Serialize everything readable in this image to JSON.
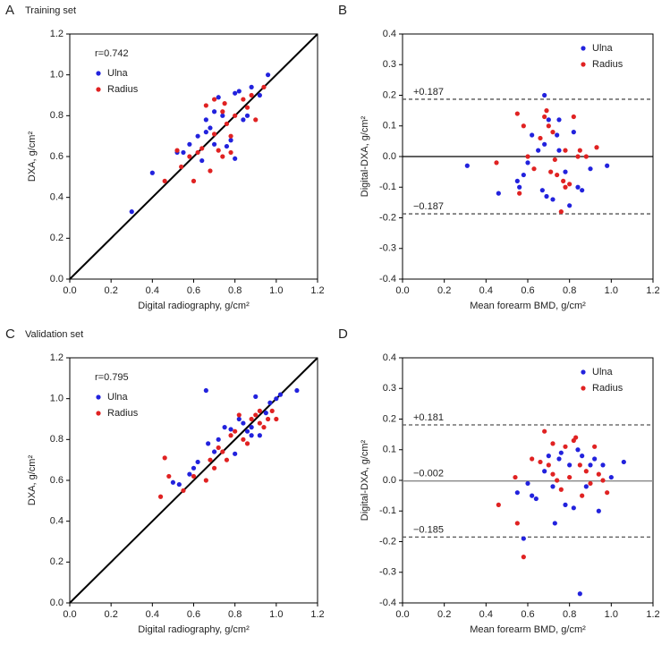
{
  "chart_data": [
    {
      "type": "scatter",
      "panel": "A",
      "title": "Training set",
      "annotation": "r=0.742",
      "xlabel": "Digital radiography, g/cm²",
      "ylabel": "DXA, g/cm²",
      "identity_line": true,
      "legend": "upper left",
      "xlim": [
        0,
        1.2
      ],
      "ylim": [
        0,
        1.2
      ],
      "xticks": [
        {
          "value": 0,
          "label": "0.0"
        },
        0.2,
        0.4,
        0.6,
        0.8,
        {
          "value": 1,
          "label": "1.0"
        },
        1.2
      ],
      "yticks": [
        {
          "value": 0,
          "label": "0.0"
        },
        0.2,
        0.4,
        0.6,
        0.8,
        {
          "value": 1,
          "label": "1.0"
        },
        1.2
      ],
      "series": [
        {
          "name": "Ulna",
          "color": "#2222dd",
          "x": [
            0.3,
            0.4,
            0.52,
            0.55,
            0.58,
            0.62,
            0.64,
            0.66,
            0.68,
            0.7,
            0.72,
            0.74,
            0.76,
            0.78,
            0.8,
            0.8,
            0.82,
            0.84,
            0.86,
            0.88,
            0.92,
            0.96,
            0.7,
            0.66
          ],
          "values": [
            0.33,
            0.52,
            0.62,
            0.62,
            0.66,
            0.7,
            0.58,
            0.78,
            0.74,
            0.82,
            0.89,
            0.8,
            0.65,
            0.68,
            0.59,
            0.91,
            0.92,
            0.78,
            0.8,
            0.94,
            0.9,
            1.0,
            0.66,
            0.72
          ]
        },
        {
          "name": "Radius",
          "color": "#e02222",
          "x": [
            0.46,
            0.52,
            0.54,
            0.58,
            0.6,
            0.64,
            0.66,
            0.68,
            0.7,
            0.72,
            0.74,
            0.75,
            0.76,
            0.78,
            0.78,
            0.8,
            0.84,
            0.86,
            0.88,
            0.9,
            0.94,
            0.74,
            0.62,
            0.7
          ],
          "values": [
            0.48,
            0.63,
            0.55,
            0.6,
            0.48,
            0.64,
            0.85,
            0.53,
            0.71,
            0.63,
            0.6,
            0.86,
            0.76,
            0.7,
            0.62,
            0.8,
            0.88,
            0.84,
            0.9,
            0.78,
            0.94,
            0.82,
            0.62,
            0.88
          ]
        }
      ]
    },
    {
      "type": "scatter",
      "panel": "B",
      "xlabel": "Mean forearm BMD, g/cm²",
      "ylabel": "Digital-DXA, g/cm²",
      "legend": "upper right",
      "xlim": [
        0,
        1.2
      ],
      "ylim": [
        -0.4,
        0.4
      ],
      "xticks": [
        {
          "value": 0,
          "label": "0.0"
        },
        0.2,
        0.4,
        0.6,
        0.8,
        {
          "value": 1,
          "label": "1.0"
        },
        1.2
      ],
      "yticks": [
        {
          "value": -0.4,
          "label": "-0.4"
        },
        {
          "value": -0.3,
          "label": "-0.3"
        },
        {
          "value": -0.2,
          "label": "-0.2"
        },
        {
          "value": -0.1,
          "label": "-0.1"
        },
        {
          "value": 0,
          "label": "0.0"
        },
        0.1,
        0.2,
        0.3,
        0.4
      ],
      "hlines": [
        {
          "value": 0.187,
          "label": "+0.187",
          "dashed": true,
          "color": "#555555"
        },
        {
          "value": 0,
          "dashed": false,
          "color": "#000000"
        },
        {
          "value": -0.187,
          "label": "−0.187",
          "dashed": true,
          "color": "#555555"
        }
      ],
      "series": [
        {
          "name": "Ulna",
          "color": "#2222dd",
          "x": [
            0.31,
            0.46,
            0.55,
            0.56,
            0.58,
            0.6,
            0.62,
            0.65,
            0.67,
            0.68,
            0.69,
            0.7,
            0.72,
            0.74,
            0.75,
            0.78,
            0.8,
            0.82,
            0.84,
            0.86,
            0.9,
            0.98,
            0.68,
            0.75
          ],
          "values": [
            -0.03,
            -0.12,
            -0.08,
            -0.1,
            -0.06,
            -0.02,
            0.07,
            0.02,
            -0.11,
            0.2,
            -0.13,
            0.12,
            -0.14,
            0.07,
            0.02,
            -0.05,
            -0.16,
            0.08,
            -0.1,
            -0.11,
            -0.04,
            -0.03,
            0.04,
            0.12
          ]
        },
        {
          "name": "Radius",
          "color": "#e02222",
          "x": [
            0.45,
            0.55,
            0.56,
            0.58,
            0.6,
            0.63,
            0.66,
            0.68,
            0.69,
            0.7,
            0.71,
            0.72,
            0.73,
            0.74,
            0.76,
            0.77,
            0.78,
            0.8,
            0.82,
            0.84,
            0.85,
            0.88,
            0.93,
            0.78
          ],
          "values": [
            -0.02,
            0.14,
            -0.12,
            0.1,
            0.0,
            -0.04,
            0.06,
            0.13,
            0.15,
            0.1,
            -0.05,
            0.08,
            -0.01,
            -0.06,
            -0.18,
            -0.08,
            0.02,
            -0.09,
            0.13,
            0.0,
            0.02,
            0.0,
            0.03,
            -0.1
          ]
        }
      ]
    },
    {
      "type": "scatter",
      "panel": "C",
      "title": "Validation set",
      "annotation": "r=0.795",
      "xlabel": "Digital radiography, g/cm²",
      "ylabel": "DXA, g/cm²",
      "identity_line": true,
      "legend": "upper left",
      "xlim": [
        0,
        1.2
      ],
      "ylim": [
        0,
        1.2
      ],
      "xticks": [
        {
          "value": 0,
          "label": "0.0"
        },
        0.2,
        0.4,
        0.6,
        0.8,
        {
          "value": 1,
          "label": "1.0"
        },
        1.2
      ],
      "yticks": [
        {
          "value": 0,
          "label": "0.0"
        },
        0.2,
        0.4,
        0.6,
        0.8,
        {
          "value": 1,
          "label": "1.0"
        },
        1.2
      ],
      "series": [
        {
          "name": "Ulna",
          "color": "#2222dd",
          "x": [
            0.5,
            0.53,
            0.58,
            0.6,
            0.62,
            0.66,
            0.67,
            0.7,
            0.72,
            0.75,
            0.78,
            0.8,
            0.82,
            0.84,
            0.86,
            0.88,
            0.9,
            0.92,
            0.95,
            0.97,
            1.0,
            1.02,
            1.1,
            0.88
          ],
          "values": [
            0.59,
            0.58,
            0.63,
            0.66,
            0.69,
            1.04,
            0.78,
            0.74,
            0.8,
            0.86,
            0.85,
            0.73,
            0.9,
            0.88,
            0.84,
            0.86,
            1.01,
            0.82,
            0.93,
            0.98,
            1.0,
            1.02,
            1.04,
            0.82
          ]
        },
        {
          "name": "Radius",
          "color": "#e02222",
          "x": [
            0.44,
            0.46,
            0.48,
            0.55,
            0.6,
            0.66,
            0.68,
            0.7,
            0.72,
            0.74,
            0.78,
            0.8,
            0.82,
            0.84,
            0.86,
            0.88,
            0.9,
            0.92,
            0.94,
            0.96,
            0.98,
            1.0,
            0.76,
            0.92
          ],
          "values": [
            0.52,
            0.71,
            0.62,
            0.55,
            0.62,
            0.6,
            0.7,
            0.66,
            0.76,
            0.74,
            0.82,
            0.84,
            0.92,
            0.8,
            0.78,
            0.9,
            0.92,
            0.88,
            0.86,
            0.9,
            0.94,
            0.9,
            0.7,
            0.94
          ]
        }
      ]
    },
    {
      "type": "scatter",
      "panel": "D",
      "xlabel": "Mean forearm BMD, g/cm²",
      "ylabel": "Digital-DXA, g/cm²",
      "legend": "upper right",
      "xlim": [
        0,
        1.2
      ],
      "ylim": [
        -0.4,
        0.4
      ],
      "xticks": [
        {
          "value": 0,
          "label": "0.0"
        },
        0.2,
        0.4,
        0.6,
        0.8,
        {
          "value": 1,
          "label": "1.0"
        },
        1.2
      ],
      "yticks": [
        {
          "value": -0.4,
          "label": "-0.4"
        },
        {
          "value": -0.3,
          "label": "-0.3"
        },
        {
          "value": -0.2,
          "label": "-0.2"
        },
        {
          "value": -0.1,
          "label": "-0.1"
        },
        {
          "value": 0,
          "label": "0.0"
        },
        0.1,
        0.2,
        0.3,
        0.4
      ],
      "hlines": [
        {
          "value": 0.181,
          "label": "+0.181",
          "dashed": true,
          "color": "#555555"
        },
        {
          "value": -0.002,
          "label": "−0.002",
          "dashed": false,
          "color": "#888888"
        },
        {
          "value": -0.185,
          "label": "−0.185",
          "dashed": true,
          "color": "#555555"
        }
      ],
      "series": [
        {
          "name": "Ulna",
          "color": "#2222dd",
          "x": [
            0.55,
            0.58,
            0.6,
            0.62,
            0.64,
            0.68,
            0.7,
            0.72,
            0.73,
            0.75,
            0.76,
            0.78,
            0.8,
            0.82,
            0.84,
            0.85,
            0.86,
            0.88,
            0.9,
            0.92,
            0.94,
            0.96,
            1.0,
            1.06
          ],
          "values": [
            -0.04,
            -0.19,
            -0.01,
            -0.05,
            -0.06,
            0.03,
            0.08,
            -0.02,
            -0.14,
            0.07,
            0.09,
            -0.08,
            0.05,
            -0.09,
            0.1,
            -0.37,
            0.08,
            -0.02,
            0.05,
            0.07,
            -0.1,
            0.05,
            0.01,
            0.06
          ]
        },
        {
          "name": "Radius",
          "color": "#e02222",
          "x": [
            0.46,
            0.54,
            0.55,
            0.58,
            0.62,
            0.66,
            0.68,
            0.7,
            0.72,
            0.74,
            0.76,
            0.78,
            0.8,
            0.82,
            0.83,
            0.85,
            0.88,
            0.9,
            0.92,
            0.94,
            0.96,
            0.98,
            0.72,
            0.86
          ],
          "values": [
            -0.08,
            0.01,
            -0.14,
            -0.25,
            0.07,
            0.06,
            0.16,
            0.05,
            0.12,
            0.0,
            -0.03,
            0.11,
            0.01,
            0.13,
            0.14,
            0.05,
            0.03,
            -0.01,
            0.11,
            0.02,
            0.0,
            -0.04,
            0.02,
            -0.05
          ]
        }
      ]
    }
  ]
}
